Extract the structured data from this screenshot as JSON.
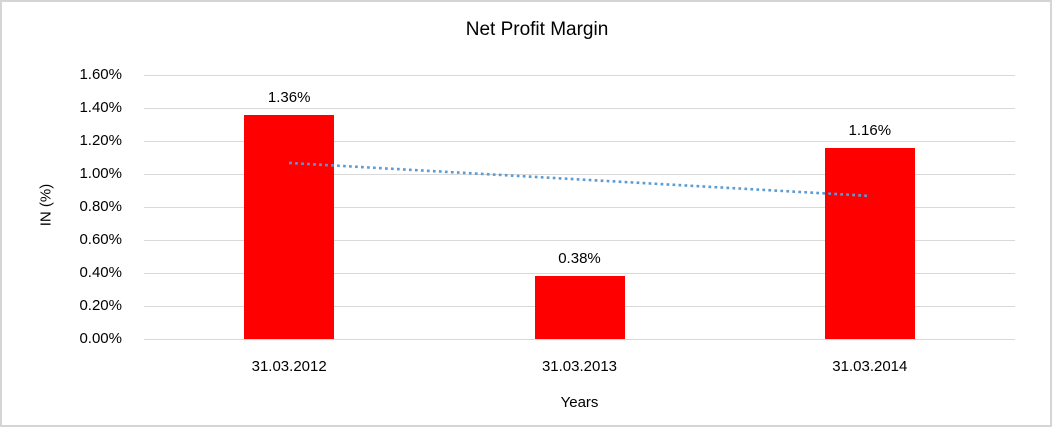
{
  "window": {
    "background_color": "#FFFFFF",
    "frame_border_color": "#D5D5D5"
  },
  "chart_data": {
    "type": "bar",
    "title": "Net Profit Margin",
    "xlabel": "Years",
    "ylabel": "IN (%)",
    "categories": [
      "31.03.2012",
      "31.03.2013",
      "31.03.2014"
    ],
    "values": [
      1.36,
      0.38,
      1.16
    ],
    "data_labels": [
      "1.36%",
      "0.38%",
      "1.16%"
    ],
    "ylim": [
      0,
      1.6
    ],
    "ytick_step": 0.2,
    "ytick_labels": [
      "0.00%",
      "0.20%",
      "0.40%",
      "0.60%",
      "0.80%",
      "1.00%",
      "1.20%",
      "1.40%",
      "1.60%"
    ],
    "grid": true,
    "gridline_color": "#D9D9D9",
    "bar_color": "#FF0000",
    "legend_position": "none",
    "trendline": {
      "style": "dotted",
      "color": "#5B9BD5",
      "start_value": 1.067,
      "end_value": 0.867
    }
  }
}
